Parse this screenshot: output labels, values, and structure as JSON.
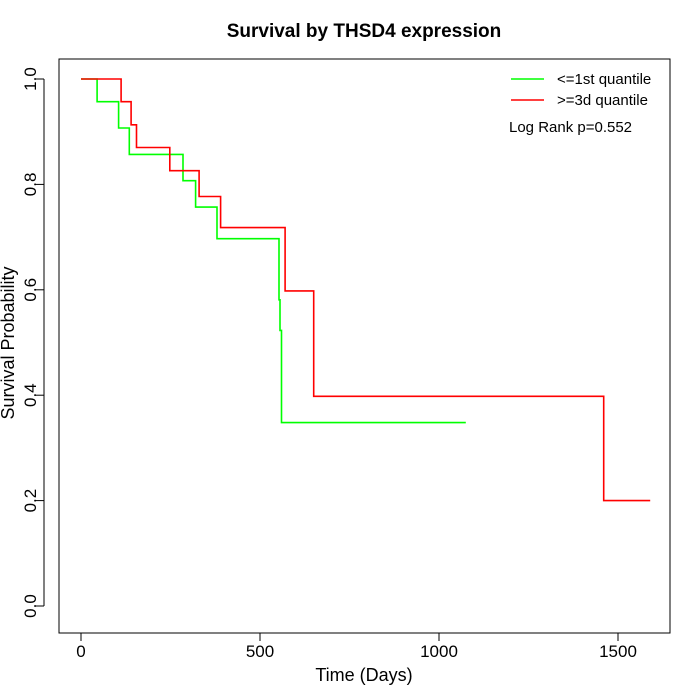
{
  "chart_data": {
    "type": "line",
    "subtype": "kaplan-meier step",
    "title": "Survival by THSD4 expression",
    "xlabel": "Time (Days)",
    "ylabel": "Survival Probability",
    "xlim": [
      0,
      1650
    ],
    "ylim": [
      0,
      1.0
    ],
    "x_ticks": [
      "0",
      "500",
      "1000",
      "1500"
    ],
    "y_ticks": [
      "0.0",
      "0.2",
      "0.4",
      "0.6",
      "0.8",
      "1.0"
    ],
    "grid": false,
    "legend_position": "top-right",
    "annotation": "Log Rank p=0.552",
    "series": [
      {
        "name": "<=1st quantile",
        "color": "#00ff00",
        "points": [
          [
            0,
            1.0
          ],
          [
            45,
            1.0
          ],
          [
            45,
            0.957
          ],
          [
            105,
            0.957
          ],
          [
            105,
            0.907
          ],
          [
            135,
            0.907
          ],
          [
            135,
            0.857
          ],
          [
            285,
            0.857
          ],
          [
            285,
            0.807
          ],
          [
            320,
            0.807
          ],
          [
            320,
            0.757
          ],
          [
            380,
            0.757
          ],
          [
            380,
            0.697
          ],
          [
            553,
            0.697
          ],
          [
            553,
            0.581
          ],
          [
            556,
            0.581
          ],
          [
            556,
            0.523
          ],
          [
            560,
            0.523
          ],
          [
            560,
            0.348
          ],
          [
            1075,
            0.348
          ]
        ]
      },
      {
        "name": ">=3d quantile",
        "color": "#ff0000",
        "points": [
          [
            0,
            1.0
          ],
          [
            112,
            1.0
          ],
          [
            112,
            0.957
          ],
          [
            140,
            0.957
          ],
          [
            140,
            0.913
          ],
          [
            155,
            0.913
          ],
          [
            155,
            0.87
          ],
          [
            248,
            0.87
          ],
          [
            248,
            0.826
          ],
          [
            330,
            0.826
          ],
          [
            330,
            0.777
          ],
          [
            390,
            0.777
          ],
          [
            390,
            0.718
          ],
          [
            570,
            0.718
          ],
          [
            570,
            0.598
          ],
          [
            650,
            0.598
          ],
          [
            650,
            0.398
          ],
          [
            1460,
            0.398
          ],
          [
            1460,
            0.2
          ],
          [
            1590,
            0.2
          ]
        ]
      }
    ]
  }
}
